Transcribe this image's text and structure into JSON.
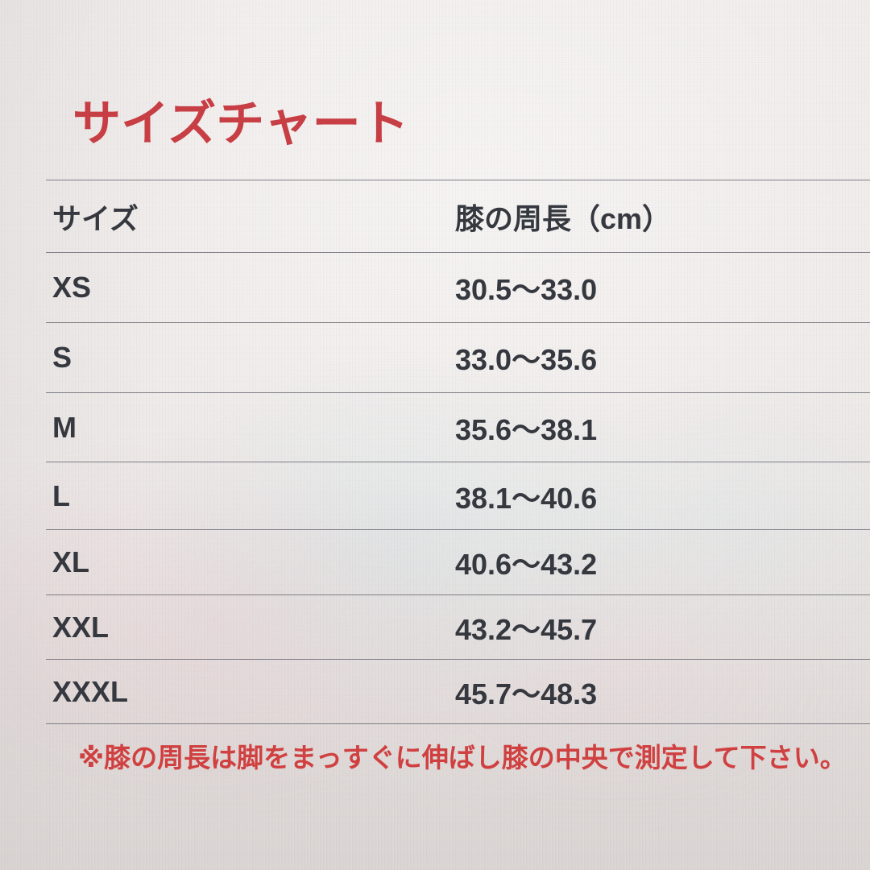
{
  "title": "サイズチャート",
  "table": {
    "columns": [
      "サイズ",
      "膝の周長（cm）"
    ],
    "rows": [
      {
        "size": "XS",
        "range": "30.5～33.0"
      },
      {
        "size": "S",
        "range": "33.0～35.6"
      },
      {
        "size": "M",
        "range": "35.6～38.1"
      },
      {
        "size": "L",
        "range": "38.1～40.6"
      },
      {
        "size": "XL",
        "range": "40.6～43.2"
      },
      {
        "size": "XXL",
        "range": "43.2～45.7"
      },
      {
        "size": "XXXL",
        "range": "45.7～48.3"
      }
    ]
  },
  "footnote": "※膝の周長は脚をまっすぐに伸ばし膝の中央で測定して下さい。",
  "colors": {
    "title_red": "#c73e45",
    "note_red": "#d04040",
    "text": "#35383e",
    "line": "#7f7f86",
    "bg": "#eae5e3"
  }
}
